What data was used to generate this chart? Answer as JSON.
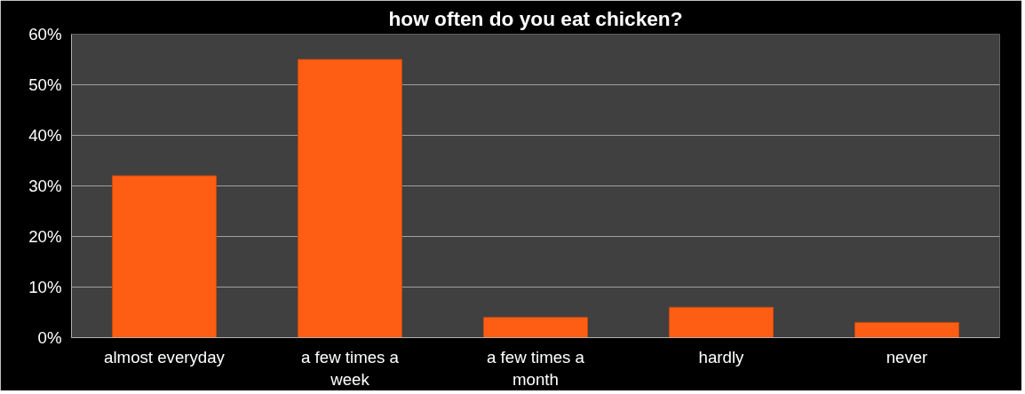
{
  "chart_data": {
    "type": "bar",
    "title": "how often do you eat chicken?",
    "categories": [
      "almost everyday",
      "a few times a week",
      "a few times a month",
      "hardly",
      "never"
    ],
    "values": [
      32,
      55,
      4,
      6,
      3
    ],
    "color": "#fd5e14",
    "ylim": [
      0,
      60
    ],
    "yticks": [
      {
        "value": 0,
        "label": "0%"
      },
      {
        "value": 10,
        "label": "10%"
      },
      {
        "value": 20,
        "label": "20%"
      },
      {
        "value": 30,
        "label": "30%"
      },
      {
        "value": 40,
        "label": "40%"
      },
      {
        "value": 50,
        "label": "50%"
      },
      {
        "value": 60,
        "label": "60%"
      }
    ],
    "grid": "y"
  }
}
